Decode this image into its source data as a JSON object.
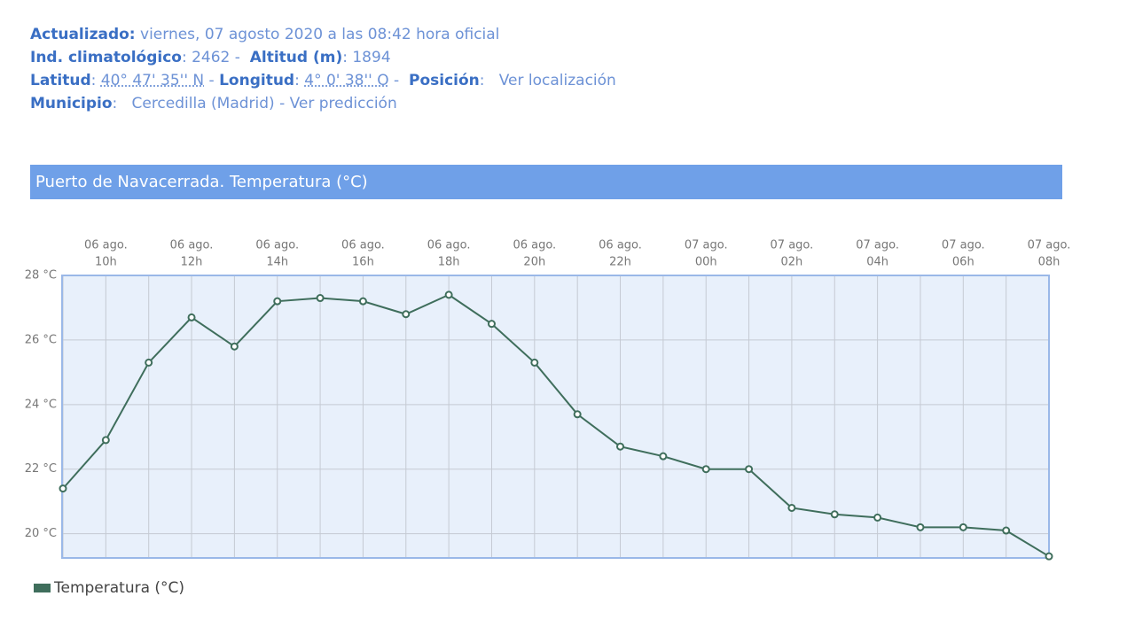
{
  "header": {
    "lines": [
      [
        {
          "text": "Actualizado:",
          "style": "label"
        },
        {
          "text": " viernes, 07 agosto 2020 a las 08:42 hora oficial",
          "style": "value"
        }
      ],
      [
        {
          "text": "Ind. climatológico",
          "style": "label"
        },
        {
          "text": ": 2462 -  ",
          "style": "value"
        },
        {
          "text": "Altitud (m)",
          "style": "label"
        },
        {
          "text": ": 1894",
          "style": "value"
        }
      ],
      [
        {
          "text": "Latitud",
          "style": "label"
        },
        {
          "text": ": ",
          "style": "value"
        },
        {
          "text": "40° 47' 35'' N",
          "style": "dotted"
        },
        {
          "text": " - ",
          "style": "value"
        },
        {
          "text": "Longitud",
          "style": "label"
        },
        {
          "text": ": ",
          "style": "value"
        },
        {
          "text": "4° 0' 38'' O",
          "style": "dotted"
        },
        {
          "text": " -  ",
          "style": "value"
        },
        {
          "text": "Posición",
          "style": "label"
        },
        {
          "text": ":   ",
          "style": "value"
        },
        {
          "text": "Ver localización",
          "style": "link"
        }
      ],
      [
        {
          "text": "Municipio",
          "style": "label"
        },
        {
          "text": ":   ",
          "style": "value"
        },
        {
          "text": "Cercedilla (Madrid) - Ver predicción",
          "style": "link"
        }
      ]
    ]
  },
  "chart_data": {
    "type": "line",
    "title": "Puerto de Navacerrada. Temperatura (°C)",
    "categories": [
      null,
      [
        "06 ago.",
        "10h"
      ],
      null,
      [
        "06 ago.",
        "12h"
      ],
      null,
      [
        "06 ago.",
        "14h"
      ],
      null,
      [
        "06 ago.",
        "16h"
      ],
      null,
      [
        "06 ago.",
        "18h"
      ],
      null,
      [
        "06 ago.",
        "20h"
      ],
      null,
      [
        "06 ago.",
        "22h"
      ],
      null,
      [
        "07 ago.",
        "00h"
      ],
      null,
      [
        "07 ago.",
        "02h"
      ],
      null,
      [
        "07 ago.",
        "04h"
      ],
      null,
      [
        "07 ago.",
        "06h"
      ],
      null,
      [
        "07 ago.",
        "08h"
      ]
    ],
    "series": [
      {
        "name": "Temperatura (°C)",
        "color": "#3f6e5c",
        "values": [
          21.4,
          22.9,
          25.3,
          26.7,
          25.8,
          27.2,
          27.3,
          27.2,
          26.8,
          27.4,
          26.5,
          25.3,
          23.7,
          22.7,
          22.4,
          22.0,
          22.0,
          20.8,
          20.6,
          20.5,
          20.2,
          20.2,
          20.1,
          19.3
        ]
      }
    ],
    "ylim": [
      19.25,
      28
    ],
    "yticks": [
      {
        "value": 20,
        "label": "20 °C"
      },
      {
        "value": 22,
        "label": "22 °C"
      },
      {
        "value": 24,
        "label": "24 °C"
      },
      {
        "value": 26,
        "label": "26 °C"
      },
      {
        "value": 28,
        "label": "28 °C"
      }
    ],
    "grid": true,
    "legend": "bottom-left"
  }
}
